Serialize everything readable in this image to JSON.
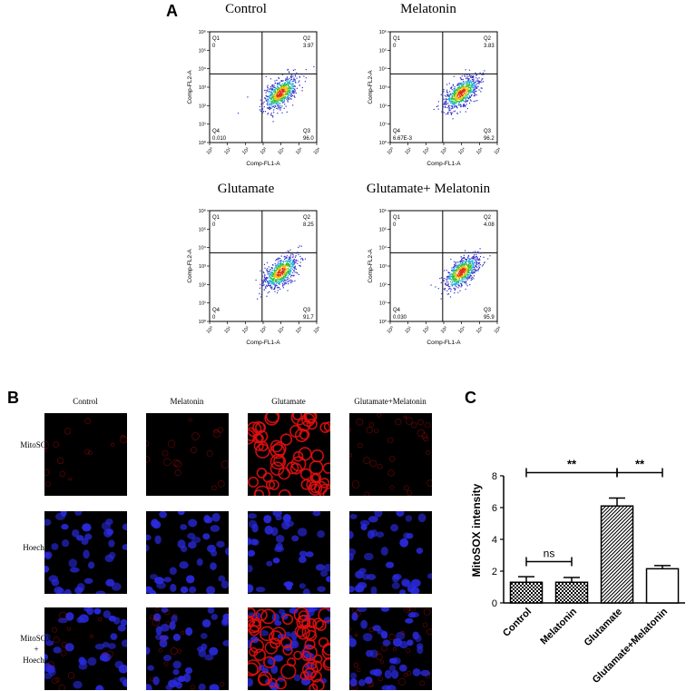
{
  "panels": {
    "A": "A",
    "B": "B",
    "C": "C"
  },
  "flow": {
    "x_label": "Comp-FL1-A",
    "y_label": "Comp-FL2-A",
    "ticks": [
      "10⁰",
      "10¹",
      "10²",
      "10³",
      "10⁴",
      "10⁵",
      "10⁶"
    ],
    "plots": [
      {
        "title": "Control",
        "q1": "Q1",
        "q1v": "0",
        "q2": "Q2",
        "q2v": "3.97",
        "q3": "Q3",
        "q3v": "96.0",
        "q4": "Q4",
        "q4v": "0.010"
      },
      {
        "title": "Melatonin",
        "q1": "Q1",
        "q1v": "0",
        "q2": "Q2",
        "q2v": "3.83",
        "q3": "Q3",
        "q3v": "96.2",
        "q4": "Q4",
        "q4v": "6.67E-3"
      },
      {
        "title": "Glutamate",
        "q1": "Q1",
        "q1v": "0",
        "q2": "Q2",
        "q2v": "8.25",
        "q3": "Q3",
        "q3v": "91.7",
        "q4": "Q4",
        "q4v": "0"
      },
      {
        "title": "Glutamate+ Melatonin",
        "q1": "Q1",
        "q1v": "0",
        "q2": "Q2",
        "q2v": "4.08",
        "q3": "Q3",
        "q3v": "95.9",
        "q4": "Q4",
        "q4v": "0.030"
      }
    ]
  },
  "micro": {
    "columns": [
      "Control",
      "Melatonin",
      "Glutamate",
      "Glutamate+Melatonin"
    ],
    "rows": [
      "MitoSOX",
      "Hoechst",
      "MitoSOX",
      "+",
      "Hoechst"
    ],
    "colors": {
      "mitosox": "#e01010",
      "hoechst": "#2a2ae0",
      "background": "#000000"
    }
  },
  "chart_data": {
    "type": "bar",
    "title": "",
    "xlabel": "",
    "ylabel": "MitoSOX intensity",
    "categories": [
      "Control",
      "Melatonin",
      "Glutamate",
      "Glutamate+Melatonin"
    ],
    "values": [
      1.3,
      1.3,
      6.1,
      2.15
    ],
    "errors": [
      0.35,
      0.3,
      0.5,
      0.2
    ],
    "ylim": [
      0,
      8
    ],
    "yticks": [
      "0",
      "2",
      "4",
      "6",
      "8"
    ],
    "patterns": [
      "checker",
      "checker",
      "diagonal",
      "none"
    ],
    "significance": [
      {
        "label": "**",
        "from": "Control",
        "to": "Glutamate",
        "y": 8.2
      },
      {
        "label": "ns",
        "from": "Control",
        "to": "Melatonin",
        "y": 2.6
      },
      {
        "label": "**",
        "from": "Glutamate",
        "to": "Glutamate+Melatonin",
        "y": 8.2
      }
    ]
  }
}
